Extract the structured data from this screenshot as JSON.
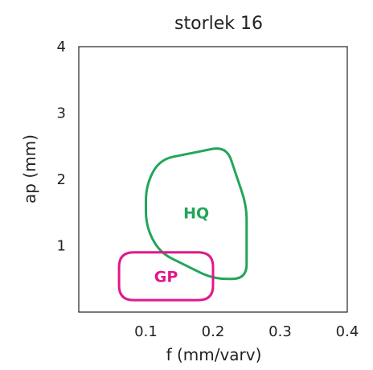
{
  "chart_data": {
    "type": "area",
    "title": "storlek 16",
    "xlabel": "f (mm/varv)",
    "ylabel": "ap (mm)",
    "xlim": [
      0,
      0.4
    ],
    "ylim": [
      0,
      4
    ],
    "x_ticks": [
      "0.1",
      "0.2",
      "0.3",
      "0.4"
    ],
    "y_ticks": [
      "1",
      "2",
      "3",
      "4"
    ],
    "grid": false,
    "regions": [
      {
        "name": "HQ",
        "color": "#22A55A",
        "outline": [
          [
            0.12,
            2.3
          ],
          [
            0.22,
            2.5
          ],
          [
            0.25,
            1.6
          ],
          [
            0.25,
            0.5
          ],
          [
            0.2,
            0.5
          ],
          [
            0.12,
            0.9
          ],
          [
            0.1,
            1.3
          ],
          [
            0.1,
            1.9
          ]
        ]
      },
      {
        "name": "GP",
        "color": "#E0188C",
        "outline": [
          [
            0.06,
            0.9
          ],
          [
            0.2,
            0.9
          ],
          [
            0.2,
            0.18
          ],
          [
            0.06,
            0.18
          ]
        ]
      }
    ]
  }
}
